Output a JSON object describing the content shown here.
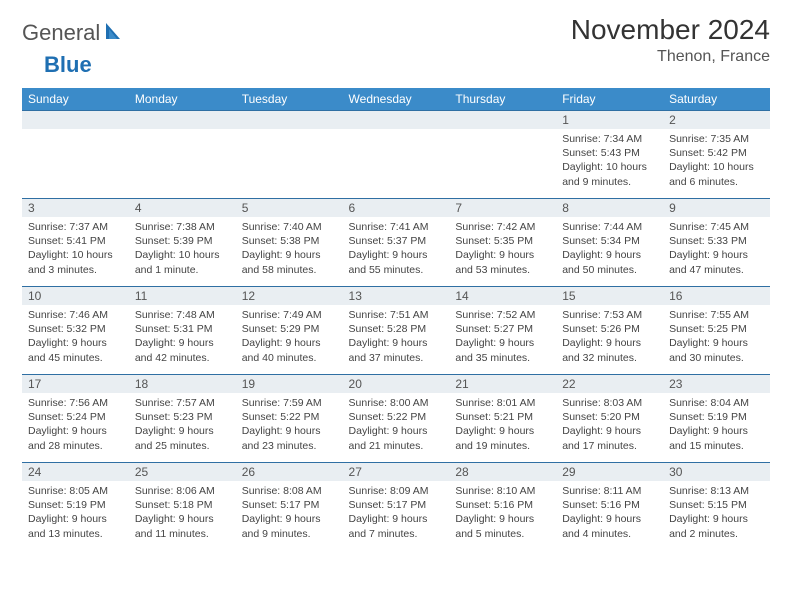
{
  "logo": {
    "word1": "General",
    "word2": "Blue"
  },
  "header": {
    "title": "November 2024",
    "location": "Thenon, France"
  },
  "colors": {
    "header_bg": "#3b8bc9",
    "header_text": "#ffffff",
    "band_bg": "#e9eef2",
    "rule": "#2f6fa3",
    "logo_gray": "#555555",
    "logo_blue": "#1f6fb2"
  },
  "daysOfWeek": [
    "Sunday",
    "Monday",
    "Tuesday",
    "Wednesday",
    "Thursday",
    "Friday",
    "Saturday"
  ],
  "weeks": [
    [
      {
        "day": null
      },
      {
        "day": null
      },
      {
        "day": null
      },
      {
        "day": null
      },
      {
        "day": null
      },
      {
        "day": "1",
        "sunrise": "Sunrise: 7:34 AM",
        "sunset": "Sunset: 5:43 PM",
        "daylight": "Daylight: 10 hours and 9 minutes."
      },
      {
        "day": "2",
        "sunrise": "Sunrise: 7:35 AM",
        "sunset": "Sunset: 5:42 PM",
        "daylight": "Daylight: 10 hours and 6 minutes."
      }
    ],
    [
      {
        "day": "3",
        "sunrise": "Sunrise: 7:37 AM",
        "sunset": "Sunset: 5:41 PM",
        "daylight": "Daylight: 10 hours and 3 minutes."
      },
      {
        "day": "4",
        "sunrise": "Sunrise: 7:38 AM",
        "sunset": "Sunset: 5:39 PM",
        "daylight": "Daylight: 10 hours and 1 minute."
      },
      {
        "day": "5",
        "sunrise": "Sunrise: 7:40 AM",
        "sunset": "Sunset: 5:38 PM",
        "daylight": "Daylight: 9 hours and 58 minutes."
      },
      {
        "day": "6",
        "sunrise": "Sunrise: 7:41 AM",
        "sunset": "Sunset: 5:37 PM",
        "daylight": "Daylight: 9 hours and 55 minutes."
      },
      {
        "day": "7",
        "sunrise": "Sunrise: 7:42 AM",
        "sunset": "Sunset: 5:35 PM",
        "daylight": "Daylight: 9 hours and 53 minutes."
      },
      {
        "day": "8",
        "sunrise": "Sunrise: 7:44 AM",
        "sunset": "Sunset: 5:34 PM",
        "daylight": "Daylight: 9 hours and 50 minutes."
      },
      {
        "day": "9",
        "sunrise": "Sunrise: 7:45 AM",
        "sunset": "Sunset: 5:33 PM",
        "daylight": "Daylight: 9 hours and 47 minutes."
      }
    ],
    [
      {
        "day": "10",
        "sunrise": "Sunrise: 7:46 AM",
        "sunset": "Sunset: 5:32 PM",
        "daylight": "Daylight: 9 hours and 45 minutes."
      },
      {
        "day": "11",
        "sunrise": "Sunrise: 7:48 AM",
        "sunset": "Sunset: 5:31 PM",
        "daylight": "Daylight: 9 hours and 42 minutes."
      },
      {
        "day": "12",
        "sunrise": "Sunrise: 7:49 AM",
        "sunset": "Sunset: 5:29 PM",
        "daylight": "Daylight: 9 hours and 40 minutes."
      },
      {
        "day": "13",
        "sunrise": "Sunrise: 7:51 AM",
        "sunset": "Sunset: 5:28 PM",
        "daylight": "Daylight: 9 hours and 37 minutes."
      },
      {
        "day": "14",
        "sunrise": "Sunrise: 7:52 AM",
        "sunset": "Sunset: 5:27 PM",
        "daylight": "Daylight: 9 hours and 35 minutes."
      },
      {
        "day": "15",
        "sunrise": "Sunrise: 7:53 AM",
        "sunset": "Sunset: 5:26 PM",
        "daylight": "Daylight: 9 hours and 32 minutes."
      },
      {
        "day": "16",
        "sunrise": "Sunrise: 7:55 AM",
        "sunset": "Sunset: 5:25 PM",
        "daylight": "Daylight: 9 hours and 30 minutes."
      }
    ],
    [
      {
        "day": "17",
        "sunrise": "Sunrise: 7:56 AM",
        "sunset": "Sunset: 5:24 PM",
        "daylight": "Daylight: 9 hours and 28 minutes."
      },
      {
        "day": "18",
        "sunrise": "Sunrise: 7:57 AM",
        "sunset": "Sunset: 5:23 PM",
        "daylight": "Daylight: 9 hours and 25 minutes."
      },
      {
        "day": "19",
        "sunrise": "Sunrise: 7:59 AM",
        "sunset": "Sunset: 5:22 PM",
        "daylight": "Daylight: 9 hours and 23 minutes."
      },
      {
        "day": "20",
        "sunrise": "Sunrise: 8:00 AM",
        "sunset": "Sunset: 5:22 PM",
        "daylight": "Daylight: 9 hours and 21 minutes."
      },
      {
        "day": "21",
        "sunrise": "Sunrise: 8:01 AM",
        "sunset": "Sunset: 5:21 PM",
        "daylight": "Daylight: 9 hours and 19 minutes."
      },
      {
        "day": "22",
        "sunrise": "Sunrise: 8:03 AM",
        "sunset": "Sunset: 5:20 PM",
        "daylight": "Daylight: 9 hours and 17 minutes."
      },
      {
        "day": "23",
        "sunrise": "Sunrise: 8:04 AM",
        "sunset": "Sunset: 5:19 PM",
        "daylight": "Daylight: 9 hours and 15 minutes."
      }
    ],
    [
      {
        "day": "24",
        "sunrise": "Sunrise: 8:05 AM",
        "sunset": "Sunset: 5:19 PM",
        "daylight": "Daylight: 9 hours and 13 minutes."
      },
      {
        "day": "25",
        "sunrise": "Sunrise: 8:06 AM",
        "sunset": "Sunset: 5:18 PM",
        "daylight": "Daylight: 9 hours and 11 minutes."
      },
      {
        "day": "26",
        "sunrise": "Sunrise: 8:08 AM",
        "sunset": "Sunset: 5:17 PM",
        "daylight": "Daylight: 9 hours and 9 minutes."
      },
      {
        "day": "27",
        "sunrise": "Sunrise: 8:09 AM",
        "sunset": "Sunset: 5:17 PM",
        "daylight": "Daylight: 9 hours and 7 minutes."
      },
      {
        "day": "28",
        "sunrise": "Sunrise: 8:10 AM",
        "sunset": "Sunset: 5:16 PM",
        "daylight": "Daylight: 9 hours and 5 minutes."
      },
      {
        "day": "29",
        "sunrise": "Sunrise: 8:11 AM",
        "sunset": "Sunset: 5:16 PM",
        "daylight": "Daylight: 9 hours and 4 minutes."
      },
      {
        "day": "30",
        "sunrise": "Sunrise: 8:13 AM",
        "sunset": "Sunset: 5:15 PM",
        "daylight": "Daylight: 9 hours and 2 minutes."
      }
    ]
  ]
}
